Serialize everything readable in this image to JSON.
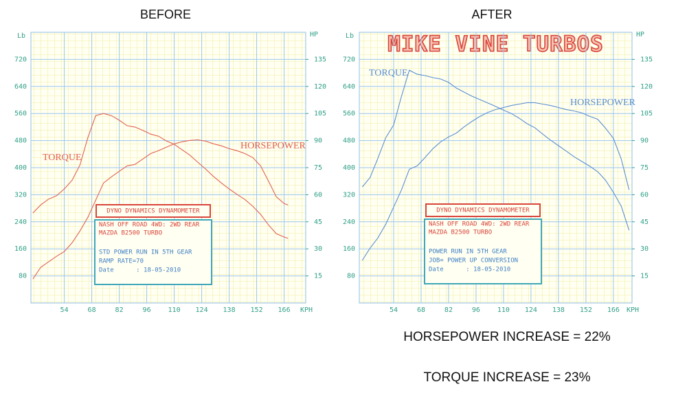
{
  "chart_data": [
    {
      "type": "line",
      "title": "BEFORE",
      "xlabel": "KPH",
      "ylabel": "Lb",
      "y2label": "HP",
      "xlim": [
        37,
        177
      ],
      "ylim": [
        0,
        800
      ],
      "y2lim": [
        0,
        150
      ],
      "xticks": [
        54,
        68,
        82,
        96,
        110,
        124,
        138,
        152,
        166
      ],
      "yticks": [
        80,
        160,
        240,
        320,
        400,
        480,
        560,
        640,
        720
      ],
      "y2ticks": [
        15,
        30,
        45,
        60,
        75,
        90,
        105,
        120,
        135
      ],
      "grid": true,
      "x": [
        38,
        42,
        46,
        50,
        54,
        58,
        62,
        66,
        70,
        74,
        78,
        82,
        86,
        90,
        94,
        98,
        102,
        106,
        110,
        114,
        118,
        122,
        126,
        130,
        134,
        138,
        142,
        146,
        150,
        154,
        158,
        162,
        166,
        168
      ],
      "series": [
        {
          "name": "TORQUE",
          "color": "#e2604e",
          "values": [
            266,
            290,
            307,
            317,
            337,
            363,
            408,
            489,
            554,
            560,
            554,
            540,
            524,
            520,
            510,
            499,
            493,
            479,
            469,
            453,
            437,
            416,
            396,
            374,
            355,
            337,
            321,
            306,
            286,
            262,
            231,
            205,
            195,
            191
          ]
        },
        {
          "name": "HORSEPOWER",
          "color": "#e2604e",
          "axis": "y2",
          "values": [
            13.3,
            19.8,
            22.8,
            25.8,
            28.5,
            33.4,
            39.9,
            47.5,
            57,
            66.5,
            69.9,
            73,
            76,
            76.8,
            79.8,
            82.8,
            84.4,
            86.3,
            88.2,
            89.3,
            90.1,
            90.4,
            89.7,
            88.2,
            87.1,
            85.5,
            84.4,
            82.8,
            80.6,
            76,
            67.6,
            58.9,
            55.1,
            54.3
          ]
        }
      ],
      "info_box": {
        "header": "DYNO DYNAMICS DYNAMOMETER",
        "lines": [
          "NASH OFF ROAD 4WD: 2WD REAR",
          "MAZDA B2500 TURBO",
          "STD POWER RUN IN 5TH GEAR",
          "RAMP RATE=70",
          "Date      : 18-05-2010"
        ]
      }
    },
    {
      "type": "line",
      "title": "AFTER",
      "subtitle": "MIKE VINE TURBOS",
      "xlabel": "KPH",
      "ylabel": "Lb",
      "y2label": "HP",
      "xlim": [
        36.5,
        175.5
      ],
      "ylim": [
        0,
        800
      ],
      "y2lim": [
        0,
        150
      ],
      "xticks": [
        54,
        68,
        82,
        96,
        110,
        124,
        138,
        152,
        166
      ],
      "yticks": [
        80,
        160,
        240,
        320,
        400,
        480,
        560,
        640,
        720
      ],
      "y2ticks": [
        15,
        30,
        45,
        60,
        75,
        90,
        105,
        120,
        135
      ],
      "grid": true,
      "x": [
        38,
        42,
        46,
        50,
        54,
        58,
        62,
        66,
        70,
        74,
        78,
        82,
        86,
        90,
        94,
        98,
        102,
        106,
        110,
        114,
        118,
        122,
        126,
        130,
        134,
        138,
        142,
        146,
        150,
        154,
        158,
        162,
        166,
        170,
        174
      ],
      "series": [
        {
          "name": "TORQUE",
          "color": "#5a8ed2",
          "values": [
            343,
            371,
            428,
            489,
            526,
            611,
            688,
            676,
            672,
            666,
            662,
            652,
            635,
            623,
            611,
            601,
            591,
            581,
            570,
            560,
            546,
            530,
            518,
            499,
            481,
            465,
            449,
            432,
            418,
            404,
            388,
            363,
            327,
            286,
            215
          ]
        },
        {
          "name": "HORSEPOWER",
          "color": "#5a8ed2",
          "axis": "y2",
          "values": [
            23.6,
            30.4,
            36.1,
            43.7,
            53.2,
            62.7,
            74.1,
            76,
            80.6,
            85.5,
            89.3,
            92,
            94.2,
            97.7,
            100.7,
            103.4,
            105.6,
            107.2,
            108.3,
            109.4,
            110.2,
            111,
            111,
            110.2,
            109.4,
            108.3,
            107.2,
            106.4,
            105.3,
            103.4,
            101.8,
            96.9,
            91.2,
            79.8,
            62.7
          ]
        }
      ],
      "info_box": {
        "header": "DYNO DYNAMICS DYNAMOMETER",
        "lines": [
          "NASH OFF ROAD 4WD: 2WD REAR",
          "MAZDA B2500 TURBO",
          "POWER RUN IN 5TH GEAR",
          "JOB= POWER UP CONVERSION",
          "Date      : 18-05-2010"
        ]
      }
    }
  ],
  "summary": [
    "HORSEPOWER INCREASE = 22%",
    "TORQUE INCREASE = 23%"
  ]
}
